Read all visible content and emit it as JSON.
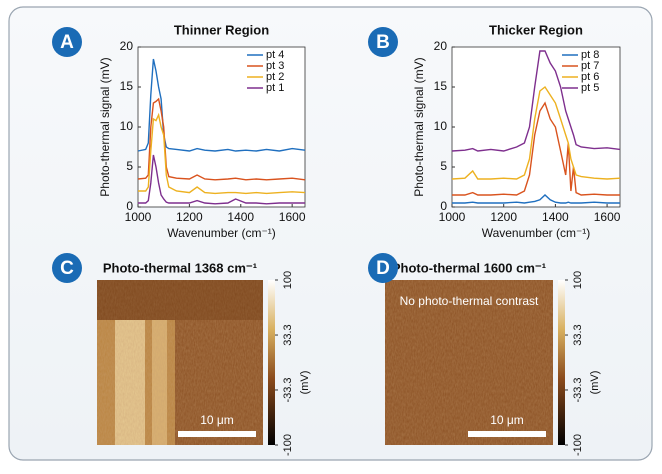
{
  "chart_data": [
    {
      "type": "line",
      "panel": "A",
      "title": "Thinner Region",
      "xlabel": "Wavenumber (cm⁻¹)",
      "ylabel": "Photo-thermal signal (mV)",
      "x": [
        1000,
        1030,
        1040,
        1050,
        1060,
        1070,
        1080,
        1090,
        1100,
        1110,
        1120,
        1150,
        1200,
        1230,
        1260,
        1300,
        1350,
        1380,
        1420,
        1460,
        1500,
        1550,
        1600,
        1650
      ],
      "series": [
        {
          "name": "pt 4",
          "color": "#1f6fbf",
          "values": [
            7,
            7.2,
            8,
            14,
            18.5,
            17,
            15,
            13.5,
            9,
            7.5,
            7.3,
            7.2,
            7,
            7.3,
            7.1,
            7,
            7.2,
            7,
            7.1,
            7,
            7.2,
            7,
            7.3,
            7.1
          ]
        },
        {
          "name": "pt 3",
          "color": "#d9531e",
          "values": [
            3.5,
            3.6,
            4,
            10,
            13,
            13.2,
            13.5,
            12,
            10,
            5,
            3.8,
            3.6,
            3.5,
            4,
            3.5,
            3.4,
            3.5,
            3.6,
            3.4,
            3.5,
            3.4,
            3.5,
            3.6,
            3.4
          ]
        },
        {
          "name": "pt 2",
          "color": "#edb120",
          "values": [
            2,
            2,
            2.5,
            7,
            11,
            10.8,
            11.5,
            10,
            9,
            4,
            2.5,
            2,
            1.8,
            2.5,
            1.8,
            1.7,
            1.8,
            1.8,
            1.7,
            1.8,
            1.7,
            1.8,
            1.9,
            1.8
          ]
        },
        {
          "name": "pt 1",
          "color": "#7e2f8e",
          "values": [
            0.5,
            0.5,
            0.8,
            3,
            6.5,
            5,
            3,
            1.5,
            1,
            0.6,
            0.5,
            0.5,
            0.5,
            0.8,
            0.5,
            0.4,
            0.5,
            1,
            0.5,
            0.5,
            0.4,
            0.5,
            0.5,
            0.5
          ]
        }
      ],
      "xlim": [
        1000,
        1650
      ],
      "ylim": [
        0,
        20
      ],
      "xticks": [
        1000,
        1200,
        1400,
        1600
      ],
      "yticks": [
        0,
        5,
        10,
        15,
        20
      ]
    },
    {
      "type": "line",
      "panel": "B",
      "title": "Thicker Region",
      "xlabel": "Wavenumber (cm⁻¹)",
      "ylabel": "Photo-thermal signal (mV)",
      "x": [
        1000,
        1050,
        1080,
        1100,
        1150,
        1200,
        1250,
        1280,
        1300,
        1320,
        1340,
        1360,
        1380,
        1400,
        1420,
        1440,
        1450,
        1460,
        1470,
        1480,
        1500,
        1550,
        1600,
        1650
      ],
      "series": [
        {
          "name": "pt 8",
          "color": "#1f6fbf",
          "values": [
            0.5,
            0.5,
            0.6,
            0.5,
            0.5,
            0.5,
            0.6,
            0.5,
            0.6,
            0.7,
            0.9,
            1.5,
            0.9,
            0.6,
            0.5,
            0.5,
            0.6,
            0.5,
            0.5,
            0.5,
            0.5,
            0.6,
            0.5,
            0.5
          ]
        },
        {
          "name": "pt 7",
          "color": "#d9531e",
          "values": [
            1.5,
            1.5,
            1.8,
            1.5,
            1.5,
            1.6,
            1.5,
            2,
            4,
            9,
            12,
            13,
            11,
            10,
            7,
            4,
            8,
            2,
            5,
            1.8,
            1.5,
            1.6,
            1.5,
            1.5
          ]
        },
        {
          "name": "pt 6",
          "color": "#edb120",
          "values": [
            3.5,
            3.6,
            4.5,
            3.5,
            3.5,
            3.6,
            3.5,
            4,
            6,
            11,
            14.5,
            15,
            14,
            13,
            11,
            9,
            8,
            6,
            5,
            4,
            3.8,
            3.6,
            3.5,
            3.6
          ]
        },
        {
          "name": "pt 5",
          "color": "#7e2f8e",
          "values": [
            7,
            7.1,
            7.3,
            7,
            7.2,
            7,
            7.5,
            8,
            10,
            15,
            19.5,
            19.5,
            18,
            17,
            15,
            12,
            11,
            10,
            9,
            7.8,
            7.5,
            7.3,
            7.4,
            7.2
          ]
        }
      ],
      "xlim": [
        1000,
        1650
      ],
      "ylim": [
        0,
        20
      ],
      "xticks": [
        1000,
        1200,
        1400,
        1600
      ],
      "yticks": [
        0,
        5,
        10,
        15,
        20
      ]
    },
    {
      "type": "heatmap",
      "panel": "C",
      "title": "Photo-thermal 1368 cm⁻¹",
      "scale_bar": "10 μm",
      "colorbar_label": "(mV)",
      "ylim": [
        -100,
        100
      ],
      "yticks": [
        100,
        33.3,
        -33.3,
        -100
      ]
    },
    {
      "type": "heatmap",
      "panel": "D",
      "title": "Photo-thermal 1600 cm⁻¹",
      "scale_bar": "10 μm",
      "colorbar_label": "(mV)",
      "annotation": "No photo-thermal contrast",
      "ylim": [
        -100,
        100
      ],
      "yticks": [
        100,
        33.3,
        -33.3,
        -100
      ]
    }
  ]
}
